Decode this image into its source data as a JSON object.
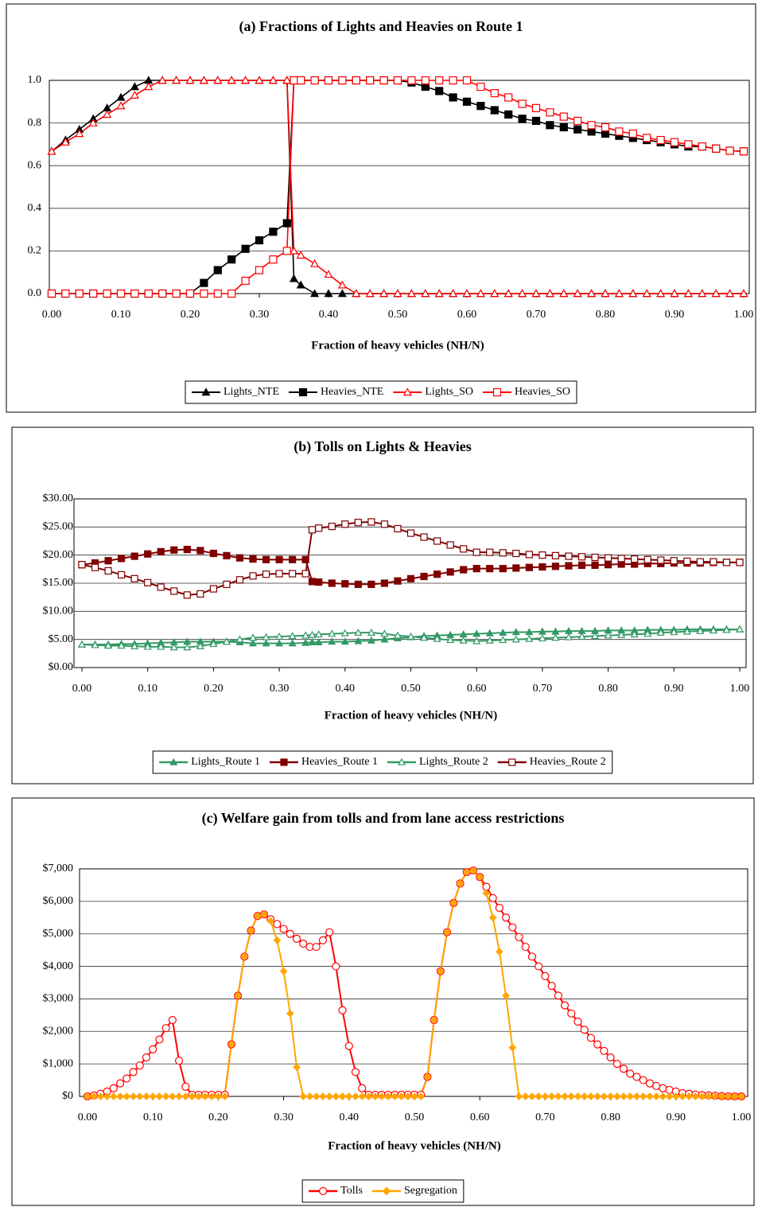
{
  "chart_data": [
    {
      "type": "line",
      "title": "(a) Fractions of Lights and Heavies on Route 1",
      "x_label": "Fraction of heavy vehicles (NH/N)",
      "x": [
        0,
        0.02,
        0.04,
        0.06,
        0.08,
        0.1,
        0.12,
        0.14,
        0.16,
        0.18,
        0.2,
        0.22,
        0.24,
        0.26,
        0.28,
        0.3,
        0.32,
        0.34,
        0.35,
        0.36,
        0.38,
        0.4,
        0.42,
        0.44,
        0.46,
        0.48,
        0.5,
        0.52,
        0.54,
        0.56,
        0.58,
        0.6,
        0.62,
        0.64,
        0.66,
        0.68,
        0.7,
        0.72,
        0.74,
        0.76,
        0.78,
        0.8,
        0.82,
        0.84,
        0.86,
        0.88,
        0.9,
        0.92,
        0.94,
        0.96,
        0.98,
        1
      ],
      "series": [
        {
          "name": "Lights_NTE",
          "color": "#000000",
          "marker": "triangle",
          "filled": true,
          "values": [
            0.667,
            0.72,
            0.77,
            0.82,
            0.87,
            0.92,
            0.97,
            1,
            1,
            1,
            1,
            1,
            1,
            1,
            1,
            1,
            1,
            1,
            0.07,
            0.04,
            0,
            0,
            0,
            0,
            0,
            0,
            0,
            0,
            0,
            0,
            0,
            0,
            0,
            0,
            0,
            0,
            0,
            0,
            0,
            0,
            0,
            0,
            0,
            0,
            0,
            0,
            0,
            0,
            0,
            0,
            0,
            0
          ]
        },
        {
          "name": "Heavies_NTE",
          "color": "#000000",
          "marker": "square",
          "filled": true,
          "values": [
            0,
            0,
            0,
            0,
            0,
            0,
            0,
            0,
            0,
            0,
            0,
            0.05,
            0.11,
            0.16,
            0.21,
            0.25,
            0.29,
            0.33,
            1,
            1,
            1,
            1,
            1,
            1,
            1,
            1,
            1,
            0.99,
            0.97,
            0.95,
            0.92,
            0.9,
            0.88,
            0.86,
            0.84,
            0.82,
            0.81,
            0.79,
            0.78,
            0.77,
            0.76,
            0.75,
            0.74,
            0.73,
            0.72,
            0.71,
            0.7,
            0.69,
            0.69,
            0.68,
            0.67,
            0.667
          ]
        },
        {
          "name": "Lights_SO",
          "color": "#ff0000",
          "marker": "triangle",
          "filled": false,
          "values": [
            0.667,
            0.71,
            0.75,
            0.8,
            0.84,
            0.88,
            0.93,
            0.97,
            1,
            1,
            1,
            1,
            1,
            1,
            1,
            1,
            1,
            1,
            0.2,
            0.18,
            0.14,
            0.09,
            0.04,
            0,
            0,
            0,
            0,
            0,
            0,
            0,
            0,
            0,
            0,
            0,
            0,
            0,
            0,
            0,
            0,
            0,
            0,
            0,
            0,
            0,
            0,
            0,
            0,
            0,
            0,
            0,
            0,
            0
          ]
        },
        {
          "name": "Heavies_SO",
          "color": "#ff0000",
          "marker": "square",
          "filled": false,
          "values": [
            0,
            0,
            0,
            0,
            0,
            0,
            0,
            0,
            0,
            0,
            0,
            0,
            0,
            0,
            0.06,
            0.11,
            0.16,
            0.2,
            1,
            1,
            1,
            1,
            1,
            1,
            1,
            1,
            1,
            1,
            1,
            1,
            1,
            1,
            0.97,
            0.94,
            0.92,
            0.89,
            0.87,
            0.85,
            0.83,
            0.81,
            0.79,
            0.78,
            0.76,
            0.75,
            0.73,
            0.72,
            0.71,
            0.7,
            0.69,
            0.68,
            0.67,
            0.667
          ]
        }
      ],
      "xlim": [
        0,
        1
      ],
      "ylim": [
        0,
        1
      ],
      "xticks": [
        {
          "value": 0,
          "label": "0.00"
        },
        {
          "value": 0.1,
          "label": "0.10"
        },
        {
          "value": 0.2,
          "label": "0.20"
        },
        {
          "value": 0.3,
          "label": "0.30"
        },
        {
          "value": 0.4,
          "label": "0.40"
        },
        {
          "value": 0.5,
          "label": "0.50"
        },
        {
          "value": 0.6,
          "label": "0.60"
        },
        {
          "value": 0.7,
          "label": "0.70"
        },
        {
          "value": 0.8,
          "label": "0.80"
        },
        {
          "value": 0.9,
          "label": "0.90"
        },
        {
          "value": 1,
          "label": "1.00"
        }
      ],
      "yticks": [
        {
          "value": 0,
          "label": "0.0"
        },
        {
          "value": 0.2,
          "label": "0.2"
        },
        {
          "value": 0.4,
          "label": "0.4"
        },
        {
          "value": 0.6,
          "label": "0.6"
        },
        {
          "value": 0.8,
          "label": "0.8"
        },
        {
          "value": 1,
          "label": "1.0"
        }
      ],
      "grid": true,
      "legend": "bottom"
    },
    {
      "type": "line",
      "title": "(b) Tolls on Lights & Heavies",
      "x_label": "Fraction of heavy vehicles (NH/N)",
      "x": [
        0,
        0.02,
        0.04,
        0.06,
        0.08,
        0.1,
        0.12,
        0.14,
        0.16,
        0.18,
        0.2,
        0.22,
        0.24,
        0.26,
        0.28,
        0.3,
        0.32,
        0.34,
        0.35,
        0.36,
        0.38,
        0.4,
        0.42,
        0.44,
        0.46,
        0.48,
        0.5,
        0.52,
        0.54,
        0.56,
        0.58,
        0.6,
        0.62,
        0.64,
        0.66,
        0.68,
        0.7,
        0.72,
        0.74,
        0.76,
        0.78,
        0.8,
        0.82,
        0.84,
        0.86,
        0.88,
        0.9,
        0.92,
        0.94,
        0.96,
        0.98,
        1
      ],
      "series": [
        {
          "name": "Lights_Route 1",
          "color": "#339966",
          "marker": "triangle",
          "filled": true,
          "values": [
            4.1,
            4.1,
            4.1,
            4.2,
            4.2,
            4.3,
            4.4,
            4.5,
            4.6,
            4.6,
            4.6,
            4.6,
            4.5,
            4.3,
            4.3,
            4.3,
            4.3,
            4.4,
            4.5,
            4.5,
            4.6,
            4.6,
            4.7,
            4.8,
            5.0,
            5.2,
            5.4,
            5.6,
            5.7,
            5.8,
            5.9,
            6.0,
            6.1,
            6.2,
            6.3,
            6.3,
            6.4,
            6.4,
            6.5,
            6.5,
            6.5,
            6.6,
            6.6,
            6.6,
            6.7,
            6.7,
            6.7,
            6.8,
            6.8,
            6.8,
            6.8,
            6.8
          ]
        },
        {
          "name": "Heavies_Route 1",
          "color": "#800000",
          "marker": "square",
          "filled": true,
          "values": [
            18.3,
            18.6,
            19.0,
            19.4,
            19.8,
            20.2,
            20.6,
            20.9,
            21.0,
            20.8,
            20.3,
            19.9,
            19.5,
            19.3,
            19.2,
            19.2,
            19.2,
            19.2,
            15.3,
            15.2,
            15.0,
            14.9,
            14.8,
            14.8,
            15.0,
            15.4,
            15.8,
            16.2,
            16.6,
            17.0,
            17.4,
            17.6,
            17.6,
            17.6,
            17.7,
            17.8,
            17.9,
            18.0,
            18.1,
            18.2,
            18.2,
            18.3,
            18.4,
            18.4,
            18.5,
            18.5,
            18.6,
            18.6,
            18.6,
            18.7,
            18.7,
            18.7
          ]
        },
        {
          "name": "Lights_Route 2",
          "color": "#339966",
          "marker": "triangle",
          "filled": false,
          "values": [
            4.1,
            4.0,
            3.9,
            3.9,
            3.8,
            3.7,
            3.7,
            3.6,
            3.6,
            3.8,
            4.2,
            4.6,
            5.0,
            5.3,
            5.4,
            5.5,
            5.6,
            5.7,
            5.8,
            5.9,
            6.0,
            6.1,
            6.2,
            6.2,
            6.0,
            5.7,
            5.5,
            5.3,
            5.1,
            4.9,
            4.8,
            4.7,
            4.8,
            4.9,
            5.0,
            5.1,
            5.2,
            5.3,
            5.4,
            5.5,
            5.6,
            5.7,
            5.8,
            5.9,
            6.0,
            6.2,
            6.3,
            6.4,
            6.5,
            6.6,
            6.7,
            6.8
          ]
        },
        {
          "name": "Heavies_Route 2",
          "color": "#800000",
          "marker": "square",
          "filled": false,
          "values": [
            18.3,
            17.8,
            17.2,
            16.5,
            15.8,
            15.1,
            14.3,
            13.6,
            12.9,
            13.1,
            14.0,
            14.8,
            15.6,
            16.3,
            16.6,
            16.7,
            16.7,
            16.7,
            24.5,
            24.8,
            25.1,
            25.5,
            25.8,
            25.9,
            25.5,
            24.7,
            23.9,
            23.2,
            22.5,
            21.8,
            21.1,
            20.5,
            20.5,
            20.4,
            20.3,
            20.1,
            20.0,
            19.9,
            19.8,
            19.7,
            19.6,
            19.5,
            19.4,
            19.3,
            19.2,
            19.1,
            19.0,
            18.9,
            18.8,
            18.8,
            18.7,
            18.7
          ]
        }
      ],
      "xlim": [
        0,
        1
      ],
      "ylim": [
        0,
        30
      ],
      "xticks": [
        {
          "value": 0,
          "label": "0.00"
        },
        {
          "value": 0.1,
          "label": "0.10"
        },
        {
          "value": 0.2,
          "label": "0.20"
        },
        {
          "value": 0.3,
          "label": "0.30"
        },
        {
          "value": 0.4,
          "label": "0.40"
        },
        {
          "value": 0.5,
          "label": "0.50"
        },
        {
          "value": 0.6,
          "label": "0.60"
        },
        {
          "value": 0.7,
          "label": "0.70"
        },
        {
          "value": 0.8,
          "label": "0.80"
        },
        {
          "value": 0.9,
          "label": "0.90"
        },
        {
          "value": 1,
          "label": "1.00"
        }
      ],
      "yticks": [
        {
          "value": 0,
          "label": "$0.00"
        },
        {
          "value": 5,
          "label": "$5.00"
        },
        {
          "value": 10,
          "label": "$10.00"
        },
        {
          "value": 15,
          "label": "$15.00"
        },
        {
          "value": 20,
          "label": "$20.00"
        },
        {
          "value": 25,
          "label": "$25.00"
        },
        {
          "value": 30,
          "label": "$30.00"
        }
      ],
      "grid": true,
      "legend": "bottom"
    },
    {
      "type": "line",
      "title": "(c) Welfare gain from tolls and from lane access restrictions",
      "x_label": "Fraction of heavy vehicles (NH/N)",
      "x": [
        0,
        0.01,
        0.02,
        0.03,
        0.04,
        0.05,
        0.06,
        0.07,
        0.08,
        0.09,
        0.1,
        0.11,
        0.12,
        0.13,
        0.14,
        0.15,
        0.16,
        0.17,
        0.18,
        0.19,
        0.2,
        0.21,
        0.22,
        0.23,
        0.24,
        0.25,
        0.26,
        0.27,
        0.28,
        0.29,
        0.3,
        0.31,
        0.32,
        0.33,
        0.34,
        0.35,
        0.36,
        0.37,
        0.38,
        0.39,
        0.4,
        0.41,
        0.42,
        0.43,
        0.44,
        0.45,
        0.46,
        0.47,
        0.48,
        0.49,
        0.5,
        0.51,
        0.52,
        0.53,
        0.54,
        0.55,
        0.56,
        0.57,
        0.58,
        0.59,
        0.6,
        0.61,
        0.62,
        0.63,
        0.64,
        0.65,
        0.66,
        0.67,
        0.68,
        0.69,
        0.7,
        0.71,
        0.72,
        0.73,
        0.74,
        0.75,
        0.76,
        0.77,
        0.78,
        0.79,
        0.8,
        0.81,
        0.82,
        0.83,
        0.84,
        0.85,
        0.86,
        0.87,
        0.88,
        0.89,
        0.9,
        0.91,
        0.92,
        0.93,
        0.94,
        0.95,
        0.96,
        0.97,
        0.98,
        0.99,
        1
      ],
      "series": [
        {
          "name": "Tolls",
          "color": "#ff0000",
          "marker": "circle",
          "filled": false,
          "values": [
            0,
            30,
            80,
            150,
            250,
            400,
            550,
            750,
            950,
            1200,
            1450,
            1750,
            2100,
            2350,
            1100,
            300,
            50,
            50,
            50,
            50,
            50,
            50,
            1600,
            3100,
            4300,
            5100,
            5550,
            5600,
            5450,
            5300,
            5150,
            5000,
            4850,
            4700,
            4600,
            4600,
            4800,
            5050,
            4000,
            2650,
            1550,
            750,
            250,
            50,
            50,
            50,
            50,
            50,
            50,
            50,
            50,
            50,
            600,
            2350,
            3850,
            5050,
            5950,
            6550,
            6900,
            6950,
            6750,
            6450,
            6100,
            5800,
            5500,
            5200,
            4900,
            4600,
            4300,
            4000,
            3700,
            3400,
            3100,
            2800,
            2550,
            2300,
            2050,
            1800,
            1600,
            1400,
            1200,
            1000,
            850,
            700,
            600,
            500,
            400,
            320,
            250,
            200,
            150,
            100,
            80,
            60,
            40,
            30,
            20,
            10,
            5,
            0,
            0
          ]
        },
        {
          "name": "Segregation",
          "color": "#ffa500",
          "marker": "diamond",
          "filled": true,
          "values": [
            0,
            0,
            0,
            0,
            0,
            0,
            0,
            0,
            0,
            0,
            0,
            0,
            0,
            0,
            0,
            0,
            0,
            0,
            0,
            0,
            0,
            0,
            1600,
            3100,
            4300,
            5100,
            5550,
            5600,
            5400,
            4800,
            3850,
            2550,
            900,
            0,
            0,
            0,
            0,
            0,
            0,
            0,
            0,
            0,
            0,
            0,
            0,
            0,
            0,
            0,
            0,
            0,
            0,
            0,
            600,
            2350,
            3850,
            5050,
            5950,
            6550,
            6900,
            6950,
            6750,
            6250,
            5500,
            4450,
            3100,
            1500,
            0,
            0,
            0,
            0,
            0,
            0,
            0,
            0,
            0,
            0,
            0,
            0,
            0,
            0,
            0,
            0,
            0,
            0,
            0,
            0,
            0,
            0,
            0,
            0,
            0,
            0,
            0,
            0,
            0,
            0,
            0,
            0,
            0,
            0,
            0
          ]
        }
      ],
      "xlim": [
        0,
        1
      ],
      "ylim": [
        0,
        7000
      ],
      "xticks": [
        {
          "value": 0,
          "label": "0.00"
        },
        {
          "value": 0.1,
          "label": "0.10"
        },
        {
          "value": 0.2,
          "label": "0.20"
        },
        {
          "value": 0.3,
          "label": "0.30"
        },
        {
          "value": 0.4,
          "label": "0.40"
        },
        {
          "value": 0.5,
          "label": "0.50"
        },
        {
          "value": 0.6,
          "label": "0.60"
        },
        {
          "value": 0.7,
          "label": "0.70"
        },
        {
          "value": 0.8,
          "label": "0.80"
        },
        {
          "value": 0.9,
          "label": "0.90"
        },
        {
          "value": 1,
          "label": "1.00"
        }
      ],
      "yticks": [
        {
          "value": 0,
          "label": "$0"
        },
        {
          "value": 1000,
          "label": "$1,000"
        },
        {
          "value": 2000,
          "label": "$2,000"
        },
        {
          "value": 3000,
          "label": "$3,000"
        },
        {
          "value": 4000,
          "label": "$4,000"
        },
        {
          "value": 5000,
          "label": "$5,000"
        },
        {
          "value": 6000,
          "label": "$6,000"
        },
        {
          "value": 7000,
          "label": "$7,000"
        }
      ],
      "grid": true,
      "legend": "bottom"
    }
  ]
}
